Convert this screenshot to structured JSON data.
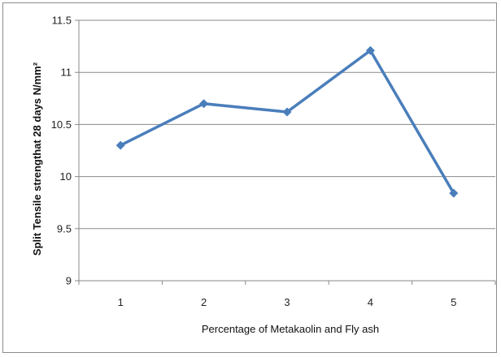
{
  "chart_data": {
    "type": "line",
    "title": "",
    "xlabel": "Percentage of  Metakaolin and Fly ash",
    "ylabel": "Split Tensile strengthat  28 days N/mm²",
    "categories": [
      "1",
      "2",
      "3",
      "4",
      "5"
    ],
    "series": [
      {
        "values": [
          10.3,
          10.7,
          10.62,
          11.21,
          9.84
        ],
        "color": "#4a7ebb",
        "marker": "diamond"
      }
    ],
    "ylim": [
      9,
      11.5
    ],
    "yticks": [
      "9",
      "9.5",
      "10",
      "10.5",
      "11",
      "11.5"
    ],
    "grid": "horizontal",
    "legend": "none"
  }
}
